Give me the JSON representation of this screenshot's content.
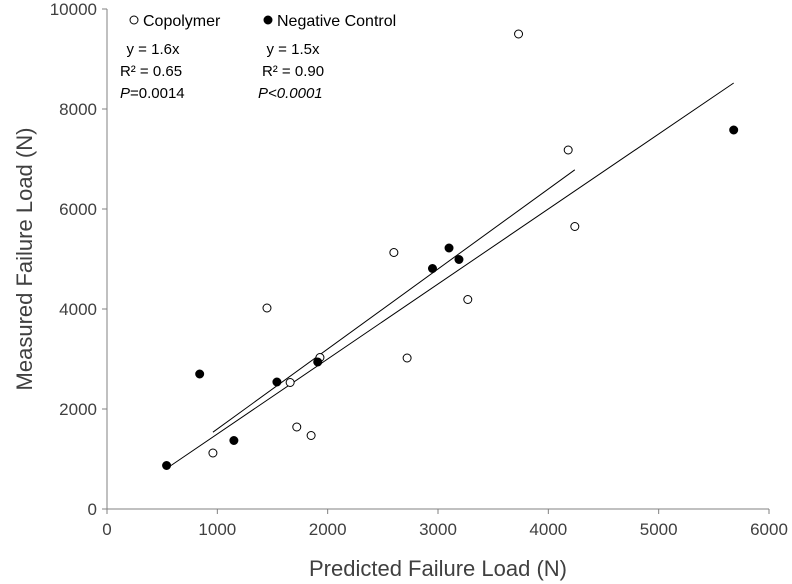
{
  "chart_data": {
    "type": "scatter",
    "title": "",
    "xlabel": "Predicted Failure Load (N)",
    "ylabel": "Measured Failure Load (N)",
    "xlim": [
      0,
      6000
    ],
    "ylim": [
      0,
      10000
    ],
    "xticks": [
      "0",
      "1000",
      "2000",
      "3000",
      "4000",
      "5000",
      "6000"
    ],
    "yticks": [
      "0",
      "2000",
      "4000",
      "6000",
      "8000",
      "10000"
    ],
    "grid": false,
    "legend_position": "top-left",
    "series": [
      {
        "name": "Copolymer",
        "marker": "open-circle",
        "color": "#000000",
        "points": [
          {
            "x": 960,
            "y": 1120
          },
          {
            "x": 1450,
            "y": 4020
          },
          {
            "x": 1660,
            "y": 2530
          },
          {
            "x": 1720,
            "y": 1640
          },
          {
            "x": 1850,
            "y": 1470
          },
          {
            "x": 1930,
            "y": 3030
          },
          {
            "x": 2600,
            "y": 5130
          },
          {
            "x": 2720,
            "y": 3020
          },
          {
            "x": 3270,
            "y": 4190
          },
          {
            "x": 3730,
            "y": 9500
          },
          {
            "x": 4180,
            "y": 7180
          },
          {
            "x": 4240,
            "y": 5650
          }
        ],
        "fit": {
          "equation": "y = 1.6x",
          "r2": "R² = 0.65",
          "p_prefix": "P",
          "p_value": "=0.0014",
          "slope": 1.6,
          "x_range": [
            960,
            4240
          ]
        }
      },
      {
        "name": "Negative Control",
        "marker": "filled-circle",
        "color": "#000000",
        "points": [
          {
            "x": 540,
            "y": 870
          },
          {
            "x": 840,
            "y": 2700
          },
          {
            "x": 1150,
            "y": 1370
          },
          {
            "x": 1540,
            "y": 2540
          },
          {
            "x": 1910,
            "y": 2940
          },
          {
            "x": 2950,
            "y": 4810
          },
          {
            "x": 3100,
            "y": 5220
          },
          {
            "x": 3190,
            "y": 4990
          },
          {
            "x": 5680,
            "y": 7580
          }
        ],
        "fit": {
          "equation": "y = 1.5x",
          "r2": "R² = 0.90",
          "p_prefix": "P",
          "p_value": "<0.0001",
          "slope": 1.5,
          "x_range": [
            540,
            5680
          ]
        }
      }
    ]
  }
}
